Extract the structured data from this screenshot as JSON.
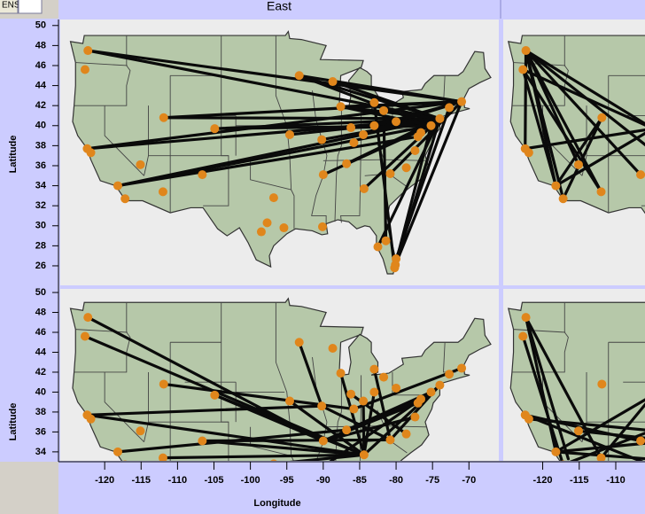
{
  "toolbar": {
    "button": "ENS"
  },
  "cities": {
    "x": [
      -122.3,
      -122.7,
      -122.4,
      -121.9,
      -118.2,
      -117.2,
      -115.1,
      -112.0,
      -111.9,
      -104.9,
      -106.6,
      -96.8,
      -97.7,
      -95.4,
      -98.5,
      -94.6,
      -93.3,
      -88.7,
      -87.6,
      -90.2,
      -90.0,
      -90.1,
      -86.8,
      -86.2,
      -85.8,
      -84.5,
      -83.0,
      -83.0,
      -81.7,
      -80.0,
      -84.4,
      -80.8,
      -78.6,
      -77.4,
      -77.0,
      -76.6,
      -75.2,
      -74.0,
      -71.0,
      -72.7,
      -81.4,
      -82.5,
      -80.2,
      -80.1,
      -80.0
    ],
    "y": [
      47.5,
      45.6,
      37.7,
      37.3,
      34.0,
      32.7,
      36.1,
      33.4,
      40.8,
      39.7,
      35.1,
      32.8,
      30.3,
      29.8,
      29.4,
      39.1,
      45.0,
      44.4,
      41.9,
      38.6,
      35.1,
      29.9,
      36.2,
      39.8,
      38.3,
      39.1,
      40.0,
      42.3,
      41.5,
      40.4,
      33.7,
      35.2,
      35.8,
      37.5,
      38.9,
      39.3,
      40.0,
      40.7,
      42.4,
      41.8,
      28.5,
      27.9,
      25.8,
      26.1,
      26.7
    ]
  },
  "chart_data": [
    {
      "type": "map",
      "title": "East",
      "ylabel": "Latitude",
      "xlim": [
        -126.1,
        -65.9
      ],
      "ylim": [
        24.05,
        50.6
      ],
      "yticks": [
        26,
        28,
        30,
        32,
        34,
        36,
        38,
        40,
        42,
        44,
        46,
        48,
        50
      ],
      "routes": [
        [
          -122.3,
          47.5,
          -71.0,
          42.4
        ],
        [
          -122.3,
          47.5,
          -74.0,
          40.7
        ],
        [
          -93.3,
          45.0,
          -71.0,
          42.4
        ],
        [
          -93.3,
          45.0,
          -74.0,
          40.7
        ],
        [
          -93.3,
          45.0,
          -75.2,
          40.0
        ],
        [
          -122.4,
          37.7,
          -74.0,
          40.7
        ],
        [
          -122.4,
          37.7,
          -71.0,
          42.4
        ],
        [
          -118.2,
          34.0,
          -74.0,
          40.7
        ],
        [
          -118.2,
          34.0,
          -77.0,
          38.9
        ],
        [
          -118.2,
          34.0,
          -75.2,
          40.0
        ],
        [
          -111.9,
          40.8,
          -74.0,
          40.7
        ],
        [
          -111.9,
          40.8,
          -71.0,
          42.4
        ],
        [
          -104.9,
          39.7,
          -75.2,
          40.0
        ],
        [
          -104.9,
          39.7,
          -74.0,
          40.7
        ],
        [
          -94.6,
          39.1,
          -74.0,
          40.7
        ],
        [
          -87.6,
          41.9,
          -71.0,
          42.4
        ],
        [
          -87.6,
          41.9,
          -74.0,
          40.7
        ],
        [
          -90.2,
          38.6,
          -74.0,
          40.7
        ],
        [
          -83.0,
          42.3,
          -80.2,
          25.8
        ],
        [
          -74.0,
          40.7,
          -80.2,
          25.8
        ],
        [
          -71.0,
          42.4,
          -80.1,
          26.1
        ],
        [
          -74.0,
          40.7,
          -82.5,
          27.9
        ],
        [
          -75.2,
          40.0,
          -80.1,
          26.1
        ],
        [
          -72.7,
          41.8,
          -80.0,
          26.7
        ],
        [
          -84.4,
          33.7,
          -74.0,
          40.7
        ],
        [
          -86.8,
          36.2,
          -74.0,
          40.7
        ],
        [
          -83.0,
          40.0,
          -71.0,
          42.4
        ],
        [
          -90.0,
          35.1,
          -75.2,
          40.0
        ],
        [
          -81.7,
          41.5,
          -81.4,
          28.5
        ],
        [
          -80.0,
          40.4,
          -71.0,
          42.4
        ],
        [
          -87.6,
          41.9,
          -75.2,
          40.0
        ],
        [
          -86.2,
          39.8,
          -75.2,
          40.0
        ],
        [
          -80.8,
          35.2,
          -71.0,
          42.4
        ],
        [
          -88.7,
          44.4,
          -74.0,
          40.7
        ]
      ]
    },
    {
      "type": "map",
      "ylabel": "Latitude",
      "xlabel": "Longitude",
      "xlim": [
        -126.1,
        -65.9
      ],
      "ylim": [
        33.1,
        50.36
      ],
      "yticks": [
        34,
        36,
        38,
        40,
        42,
        44,
        46,
        48,
        50
      ],
      "xticks": [
        -120,
        -115,
        -110,
        -105,
        -100,
        -95,
        -90,
        -85,
        -80,
        -75,
        -70
      ],
      "routes": [
        [
          -122.3,
          47.5,
          -90.0,
          35.1
        ],
        [
          -122.7,
          45.6,
          -84.4,
          33.7
        ],
        [
          -122.4,
          37.7,
          -84.4,
          33.7
        ],
        [
          -118.2,
          34.0,
          -86.8,
          36.2
        ],
        [
          -112.0,
          33.4,
          -84.4,
          33.7
        ],
        [
          -111.9,
          40.8,
          -85.8,
          38.3
        ],
        [
          -104.9,
          39.7,
          -84.4,
          33.7
        ],
        [
          -106.6,
          35.1,
          -80.8,
          35.2
        ],
        [
          -106.6,
          35.1,
          -84.4,
          33.7
        ],
        [
          -94.6,
          39.1,
          -84.4,
          33.7
        ],
        [
          -93.3,
          45.0,
          -90.2,
          38.6
        ],
        [
          -87.6,
          41.9,
          -84.4,
          33.7
        ],
        [
          -90.2,
          38.6,
          -80.8,
          35.2
        ],
        [
          -90.0,
          35.1,
          -77.0,
          38.9
        ],
        [
          -86.8,
          36.2,
          -75.2,
          40.0
        ],
        [
          -84.4,
          33.7,
          -74.0,
          40.7
        ],
        [
          -80.8,
          35.2,
          -74.0,
          40.7
        ],
        [
          -96.8,
          32.8,
          -84.4,
          33.7
        ],
        [
          -95.4,
          29.8,
          -75.2,
          40.0
        ],
        [
          -83.0,
          40.0,
          -84.4,
          33.7
        ],
        [
          -83.0,
          42.3,
          -80.8,
          35.2
        ],
        [
          -86.2,
          39.8,
          -78.6,
          35.8
        ],
        [
          -84.5,
          39.1,
          -84.4,
          33.7
        ],
        [
          -77.4,
          37.5,
          -90.0,
          35.1
        ],
        [
          -85.8,
          38.3,
          -71.0,
          42.4
        ],
        [
          -90.0,
          35.1,
          -76.6,
          39.3
        ],
        [
          -104.9,
          39.7,
          -90.0,
          35.1
        ],
        [
          -122.4,
          37.7,
          -90.2,
          38.6
        ]
      ]
    },
    {
      "type": "map",
      "xlim": [
        -125.4,
        -106
      ],
      "ylim": [
        24.05,
        50.6
      ],
      "routes": [
        [
          -122.3,
          47.5,
          -118.2,
          34.0
        ],
        [
          -122.3,
          47.5,
          -117.2,
          32.7
        ],
        [
          -122.7,
          45.6,
          -118.2,
          34.0
        ],
        [
          -122.3,
          47.5,
          -112.0,
          33.4
        ],
        [
          -122.3,
          47.5,
          -115.1,
          36.1
        ],
        [
          -122.4,
          37.7,
          -122.3,
          47.5
        ],
        [
          -122.3,
          47.5,
          -104.9,
          39.7
        ],
        [
          -122.3,
          47.5,
          -106.6,
          35.1
        ],
        [
          -118.2,
          34.0,
          -111.9,
          40.8
        ],
        [
          -122.4,
          37.7,
          -104.9,
          39.7
        ],
        [
          -117.2,
          32.7,
          -111.9,
          40.8
        ],
        [
          -122.7,
          45.6,
          -112.0,
          33.4
        ],
        [
          -122.3,
          47.5,
          -96.8,
          32.8
        ],
        [
          -122.7,
          45.6,
          -104.9,
          39.7
        ],
        [
          -118.2,
          34.0,
          -104.9,
          39.7
        ]
      ]
    },
    {
      "type": "map",
      "xlim": [
        -125.4,
        -106
      ],
      "ylim": [
        33.1,
        50.36
      ],
      "xticks": [
        -120,
        -115,
        -110
      ],
      "routes": [
        [
          -118.2,
          34.0,
          -96.8,
          32.8
        ],
        [
          -122.4,
          37.7,
          -95.4,
          29.8
        ],
        [
          -122.3,
          47.5,
          -118.2,
          34.0
        ],
        [
          -122.7,
          45.6,
          -117.2,
          32.7
        ],
        [
          -118.2,
          34.0,
          -104.9,
          39.7
        ],
        [
          -115.1,
          36.1,
          -84.4,
          33.7
        ],
        [
          -112.0,
          33.4,
          -104.9,
          39.7
        ],
        [
          -117.2,
          32.7,
          -94.6,
          39.1
        ],
        [
          -122.4,
          37.7,
          -106.6,
          35.1
        ],
        [
          -122.3,
          47.5,
          -112.0,
          33.4
        ],
        [
          -121.9,
          37.3,
          -90.0,
          35.1
        ],
        [
          -118.2,
          34.0,
          -86.8,
          36.2
        ],
        [
          -122.3,
          47.5,
          -116.5,
          33.3
        ]
      ]
    }
  ]
}
